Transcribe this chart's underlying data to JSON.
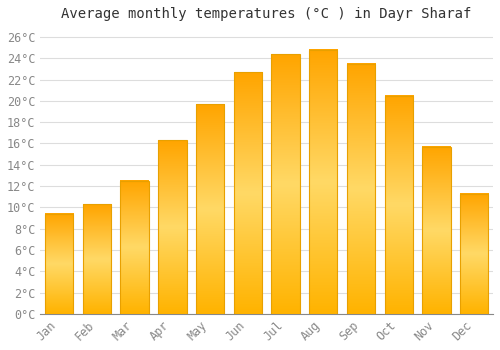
{
  "title": "Average monthly temperatures (°C ) in Dayr Sharaf",
  "months": [
    "Jan",
    "Feb",
    "Mar",
    "Apr",
    "May",
    "Jun",
    "Jul",
    "Aug",
    "Sep",
    "Oct",
    "Nov",
    "Dec"
  ],
  "temperatures": [
    9.4,
    10.3,
    12.5,
    16.3,
    19.7,
    22.7,
    24.4,
    24.8,
    23.5,
    20.5,
    15.7,
    11.3
  ],
  "bar_color_main": "#FFA500",
  "bar_color_light": "#FFD700",
  "ylim": [
    0,
    27
  ],
  "yticks": [
    0,
    2,
    4,
    6,
    8,
    10,
    12,
    14,
    16,
    18,
    20,
    22,
    24,
    26
  ],
  "ytick_labels": [
    "0°C",
    "2°C",
    "4°C",
    "6°C",
    "8°C",
    "10°C",
    "12°C",
    "14°C",
    "16°C",
    "18°C",
    "20°C",
    "22°C",
    "24°C",
    "26°C"
  ],
  "background_color": "#ffffff",
  "grid_color": "#dddddd",
  "title_fontsize": 10,
  "tick_fontsize": 8.5,
  "bar_width": 0.75
}
